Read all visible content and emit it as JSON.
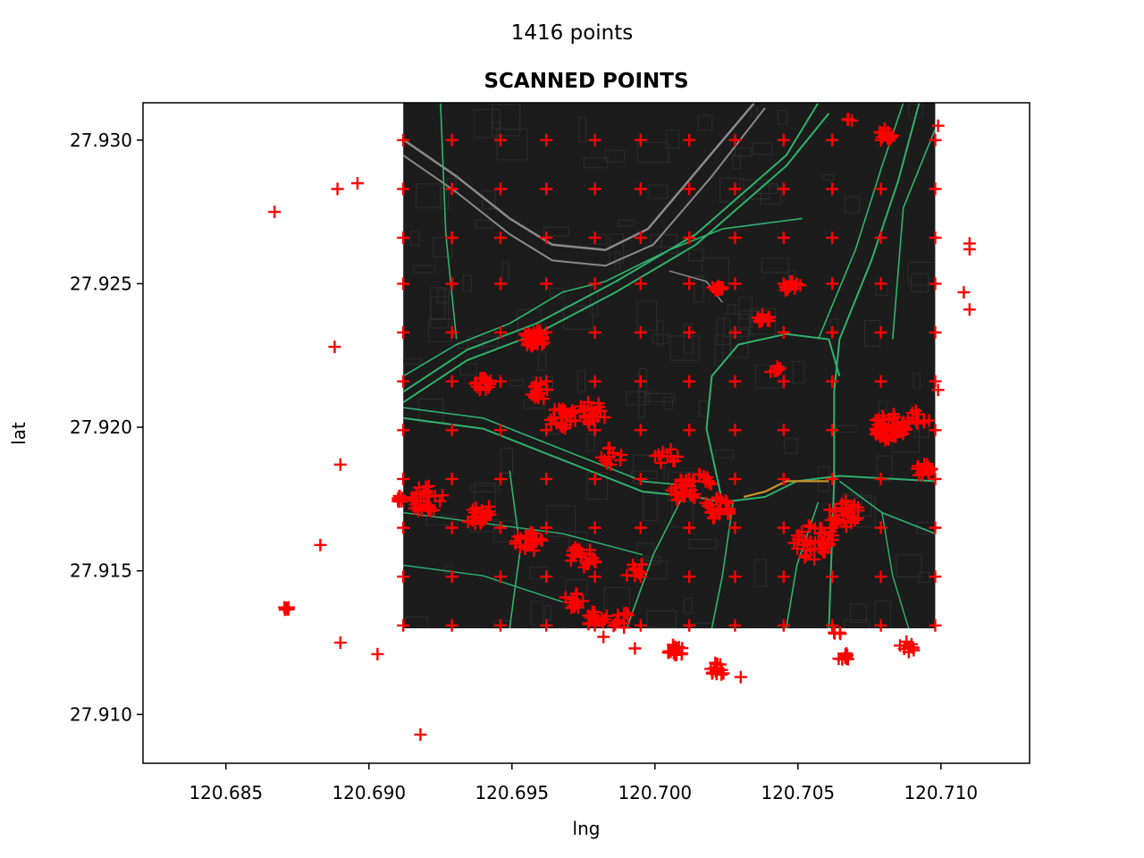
{
  "figure": {
    "suptitle": "1416 points"
  },
  "chart_data": {
    "type": "scatter",
    "title": "SCANNED POINTS",
    "xlabel": "lng",
    "ylabel": "lat",
    "xlim": [
      120.6821,
      120.7131
    ],
    "ylim": [
      27.9083,
      27.9313
    ],
    "xticks": [
      120.685,
      120.69,
      120.695,
      120.7,
      120.705,
      120.71
    ],
    "xtick_labels": [
      "120.685",
      "120.690",
      "120.695",
      "120.700",
      "120.705",
      "120.710"
    ],
    "yticks": [
      27.91,
      27.915,
      27.92,
      27.925,
      27.93
    ],
    "ytick_labels": [
      "27.910",
      "27.915",
      "27.920",
      "27.925",
      "27.930"
    ],
    "grid": false,
    "legend": false,
    "marker": "+",
    "marker_color": "#ff0000",
    "background_map": {
      "style": "dark",
      "extent_lng": [
        120.6912,
        120.7098
      ],
      "extent_lat": [
        27.913,
        27.9313
      ],
      "base_color": "#1c1c1c",
      "road_color": "#2fb36d",
      "highway_color": "#8a8a8a",
      "accent_road_color": "#c8902a"
    },
    "grid_points": {
      "lng": [
        120.6912,
        120.6929,
        120.6946,
        120.6962,
        120.6979,
        120.6995,
        120.7012,
        120.7028,
        120.7045,
        120.7062,
        120.7079,
        120.7098
      ],
      "lat": [
        27.93,
        27.9283,
        27.9266,
        27.925,
        27.9233,
        27.9216,
        27.9199,
        27.9182,
        27.9165,
        27.9148,
        27.9131
      ]
    },
    "clusters": [
      {
        "lng": 120.6958,
        "lat": 27.9231,
        "n": 40,
        "spread": 0.0004
      },
      {
        "lng": 120.694,
        "lat": 27.9215,
        "n": 16,
        "spread": 0.0003
      },
      {
        "lng": 120.696,
        "lat": 27.9213,
        "n": 16,
        "spread": 0.0004
      },
      {
        "lng": 120.6968,
        "lat": 27.9203,
        "n": 22,
        "spread": 0.0005
      },
      {
        "lng": 120.6978,
        "lat": 27.9205,
        "n": 20,
        "spread": 0.0005
      },
      {
        "lng": 120.6985,
        "lat": 27.919,
        "n": 10,
        "spread": 0.0004
      },
      {
        "lng": 120.692,
        "lat": 27.9175,
        "n": 30,
        "spread": 0.0006
      },
      {
        "lng": 120.6938,
        "lat": 27.917,
        "n": 22,
        "spread": 0.0005
      },
      {
        "lng": 120.6956,
        "lat": 27.916,
        "n": 24,
        "spread": 0.0005
      },
      {
        "lng": 120.6975,
        "lat": 27.9155,
        "n": 20,
        "spread": 0.0005
      },
      {
        "lng": 120.6993,
        "lat": 27.915,
        "n": 10,
        "spread": 0.0004
      },
      {
        "lng": 120.6972,
        "lat": 27.914,
        "n": 12,
        "spread": 0.0004
      },
      {
        "lng": 120.698,
        "lat": 27.9133,
        "n": 18,
        "spread": 0.0004
      },
      {
        "lng": 120.6988,
        "lat": 27.9133,
        "n": 10,
        "spread": 0.0004
      },
      {
        "lng": 120.701,
        "lat": 27.9178,
        "n": 22,
        "spread": 0.0005
      },
      {
        "lng": 120.7004,
        "lat": 27.919,
        "n": 10,
        "spread": 0.0004
      },
      {
        "lng": 120.7022,
        "lat": 27.9172,
        "n": 24,
        "spread": 0.0005
      },
      {
        "lng": 120.7017,
        "lat": 27.9182,
        "n": 10,
        "spread": 0.0004
      },
      {
        "lng": 120.7022,
        "lat": 27.9249,
        "n": 14,
        "spread": 0.0002
      },
      {
        "lng": 120.7038,
        "lat": 27.9237,
        "n": 10,
        "spread": 0.0003
      },
      {
        "lng": 120.7048,
        "lat": 27.9249,
        "n": 12,
        "spread": 0.0003
      },
      {
        "lng": 120.7042,
        "lat": 27.922,
        "n": 6,
        "spread": 0.0002
      },
      {
        "lng": 120.7056,
        "lat": 27.916,
        "n": 40,
        "spread": 0.0008
      },
      {
        "lng": 120.7066,
        "lat": 27.917,
        "n": 30,
        "spread": 0.0006
      },
      {
        "lng": 120.7082,
        "lat": 27.92,
        "n": 60,
        "spread": 0.0006
      },
      {
        "lng": 120.7094,
        "lat": 27.9185,
        "n": 20,
        "spread": 0.0003
      },
      {
        "lng": 120.7092,
        "lat": 27.9203,
        "n": 12,
        "spread": 0.0004
      },
      {
        "lng": 120.7081,
        "lat": 27.9302,
        "n": 14,
        "spread": 0.0003
      },
      {
        "lng": 120.7068,
        "lat": 27.9307,
        "n": 4,
        "spread": 0.0001
      },
      {
        "lng": 120.7066,
        "lat": 27.912,
        "n": 12,
        "spread": 0.0002
      },
      {
        "lng": 120.7088,
        "lat": 27.9123,
        "n": 10,
        "spread": 0.0003
      },
      {
        "lng": 120.7007,
        "lat": 27.9122,
        "n": 18,
        "spread": 0.0003
      },
      {
        "lng": 120.7022,
        "lat": 27.9116,
        "n": 14,
        "spread": 0.0003
      },
      {
        "lng": 120.691,
        "lat": 27.9175,
        "n": 10,
        "spread": 0.0002
      },
      {
        "lng": 120.6871,
        "lat": 27.9137,
        "n": 12,
        "spread": 0.0001
      },
      {
        "lng": 120.7064,
        "lat": 27.9128,
        "n": 4,
        "spread": 0.0002
      }
    ],
    "outliers": [
      {
        "lng": 120.6867,
        "lat": 27.9275
      },
      {
        "lng": 120.6889,
        "lat": 27.9283
      },
      {
        "lng": 120.6896,
        "lat": 27.9285
      },
      {
        "lng": 120.6888,
        "lat": 27.9228
      },
      {
        "lng": 120.689,
        "lat": 27.9187
      },
      {
        "lng": 120.6883,
        "lat": 27.9159
      },
      {
        "lng": 120.689,
        "lat": 27.9125
      },
      {
        "lng": 120.6903,
        "lat": 27.9121
      },
      {
        "lng": 120.6918,
        "lat": 27.9093
      },
      {
        "lng": 120.711,
        "lat": 27.9264
      },
      {
        "lng": 120.711,
        "lat": 27.9262
      },
      {
        "lng": 120.7108,
        "lat": 27.9247
      },
      {
        "lng": 120.711,
        "lat": 27.9241
      },
      {
        "lng": 120.7099,
        "lat": 27.9305
      },
      {
        "lng": 120.7099,
        "lat": 27.9213
      },
      {
        "lng": 120.6993,
        "lat": 27.9123
      },
      {
        "lng": 120.6982,
        "lat": 27.9127
      },
      {
        "lng": 120.703,
        "lat": 27.9113
      }
    ]
  }
}
